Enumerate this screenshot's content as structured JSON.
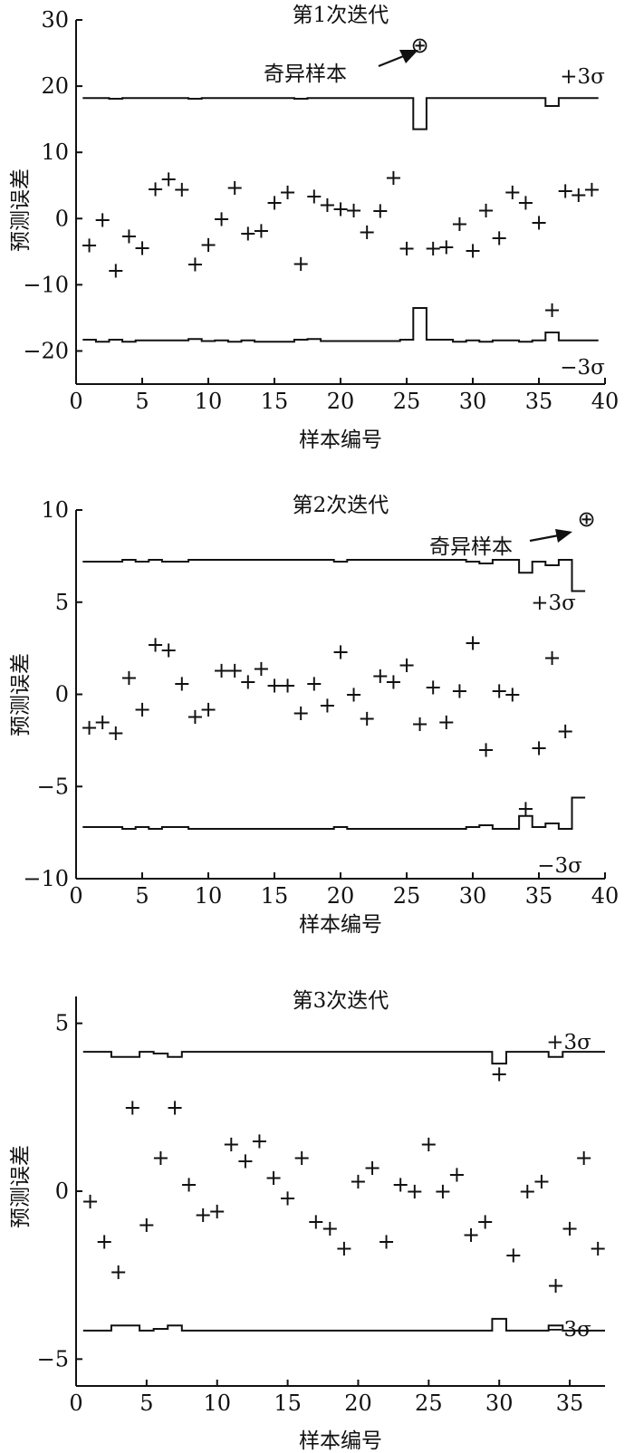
{
  "chart_data": [
    {
      "type": "scatter",
      "title": "第1次迭代",
      "xlabel": "样本编号",
      "ylabel": "预测误差",
      "xlim": [
        0,
        40
      ],
      "ylim": [
        -25,
        30
      ],
      "xticks": [
        0,
        5,
        10,
        15,
        20,
        25,
        30,
        35,
        40
      ],
      "xtick_labels": [
        "0",
        "5",
        "10",
        "15",
        "20",
        "25",
        "30",
        "35",
        "40"
      ],
      "yticks": [
        30,
        20,
        10,
        0,
        -10,
        -20
      ],
      "ytick_labels": [
        "30",
        "20",
        "10",
        "0",
        "−10",
        "−20"
      ],
      "grid": false,
      "x": [
        1,
        2,
        3,
        4,
        5,
        6,
        7,
        8,
        9,
        10,
        11,
        12,
        13,
        14,
        15,
        16,
        17,
        18,
        19,
        20,
        21,
        22,
        23,
        24,
        25,
        27,
        28,
        29,
        30,
        31,
        32,
        33,
        34,
        35,
        36,
        37,
        38,
        39
      ],
      "y": [
        -4,
        -0.2,
        -7.8,
        -2.6,
        -4.4,
        4.5,
        6,
        4.4,
        -6.9,
        -3.9,
        0,
        4.7,
        -2.2,
        -1.8,
        2.4,
        4,
        -6.8,
        3.4,
        2.1,
        1.5,
        1.3,
        -2,
        1.2,
        6.2,
        -4.5,
        -4.5,
        -4.3,
        -0.8,
        -4.8,
        1.3,
        -2.9,
        4,
        2.4,
        -0.6,
        -13.8,
        4.2,
        3.6,
        4.4
      ],
      "upper_limit": {
        "label": "+3σ",
        "x": [
          1,
          2,
          3,
          4,
          5,
          6,
          7,
          8,
          9,
          10,
          11,
          12,
          13,
          14,
          15,
          16,
          17,
          18,
          19,
          20,
          21,
          22,
          23,
          24,
          25,
          26,
          27,
          28,
          29,
          30,
          31,
          32,
          33,
          34,
          35,
          36,
          37,
          38,
          39
        ],
        "y": [
          18.2,
          18.2,
          18.1,
          18.2,
          18.2,
          18.2,
          18.2,
          18.2,
          18.1,
          18.2,
          18.2,
          18.2,
          18.2,
          18.2,
          18.2,
          18.2,
          18.1,
          18.2,
          18.2,
          18.2,
          18.2,
          18.2,
          18.2,
          18.2,
          18.2,
          13.5,
          18.2,
          18.2,
          18.2,
          18.2,
          18.2,
          18.2,
          18.2,
          18.2,
          18.2,
          17,
          18.2,
          18.2,
          18.2
        ]
      },
      "lower_limit": {
        "label": "−3σ",
        "x": [
          1,
          2,
          3,
          4,
          5,
          6,
          7,
          8,
          9,
          10,
          11,
          12,
          13,
          14,
          15,
          16,
          17,
          18,
          19,
          20,
          21,
          22,
          23,
          24,
          25,
          26,
          27,
          28,
          29,
          30,
          31,
          32,
          33,
          34,
          35,
          36,
          37,
          38,
          39
        ],
        "y": [
          -18.3,
          -18.6,
          -18.3,
          -18.6,
          -18.4,
          -18.4,
          -18.4,
          -18.4,
          -18.2,
          -18.5,
          -18.4,
          -18.6,
          -18.4,
          -18.6,
          -18.6,
          -18.6,
          -18.3,
          -18.2,
          -18.5,
          -18.5,
          -18.5,
          -18.5,
          -18.5,
          -18.5,
          -18.3,
          -13.5,
          -18.3,
          -18.3,
          -18.6,
          -18.4,
          -18.6,
          -18.4,
          -18.4,
          -18.6,
          -18.4,
          -17.2,
          -18.4,
          -18.4,
          -18.4
        ]
      },
      "singular_sample": {
        "label": "奇异样本",
        "marker": "⊕",
        "x": 26,
        "y": 26.2
      }
    },
    {
      "type": "scatter",
      "title": "第2次迭代",
      "xlabel": "样本编号",
      "ylabel": "预测误差",
      "xlim": [
        0,
        40
      ],
      "ylim": [
        -10,
        10
      ],
      "xticks": [
        0,
        5,
        10,
        15,
        20,
        25,
        30,
        35,
        40
      ],
      "xtick_labels": [
        "0",
        "5",
        "10",
        "15",
        "20",
        "25",
        "30",
        "35",
        "40"
      ],
      "yticks": [
        10,
        5,
        0,
        -5,
        -10
      ],
      "ytick_labels": [
        "10",
        "5",
        "0",
        "−5",
        "−10"
      ],
      "grid": false,
      "x": [
        1,
        2,
        3,
        4,
        5,
        6,
        7,
        8,
        9,
        10,
        11,
        12,
        13,
        14,
        15,
        16,
        17,
        18,
        19,
        20,
        21,
        22,
        23,
        24,
        25,
        26,
        27,
        28,
        29,
        30,
        31,
        32,
        33,
        34,
        35,
        36,
        37
      ],
      "y": [
        -1.8,
        -1.5,
        -2.1,
        0.9,
        -0.8,
        2.7,
        2.4,
        0.6,
        -1.2,
        -0.8,
        1.3,
        1.3,
        0.7,
        1.4,
        0.5,
        0.5,
        -1,
        0.6,
        -0.6,
        2.3,
        0,
        -1.3,
        1,
        0.7,
        1.6,
        -1.6,
        0.4,
        -1.5,
        0.2,
        2.8,
        -3,
        0.2,
        0,
        -6.2,
        -2.9,
        2,
        -2
      ],
      "upper_limit": {
        "label": "+3σ",
        "x": [
          1,
          2,
          3,
          4,
          5,
          6,
          7,
          8,
          9,
          10,
          11,
          12,
          13,
          14,
          15,
          16,
          17,
          18,
          19,
          20,
          21,
          22,
          23,
          24,
          25,
          26,
          27,
          28,
          29,
          30,
          31,
          32,
          33,
          34,
          35,
          36,
          37,
          38
        ],
        "y": [
          7.2,
          7.2,
          7.2,
          7.3,
          7.2,
          7.3,
          7.2,
          7.2,
          7.3,
          7.3,
          7.3,
          7.3,
          7.3,
          7.3,
          7.3,
          7.3,
          7.3,
          7.3,
          7.3,
          7.2,
          7.3,
          7.3,
          7.3,
          7.3,
          7.3,
          7.3,
          7.3,
          7.3,
          7.3,
          7.2,
          7.1,
          7.3,
          7.3,
          6.6,
          7.2,
          7,
          7.3,
          5.6
        ]
      },
      "lower_limit": {
        "label": "−3σ",
        "x": [
          1,
          2,
          3,
          4,
          5,
          6,
          7,
          8,
          9,
          10,
          11,
          12,
          13,
          14,
          15,
          16,
          17,
          18,
          19,
          20,
          21,
          22,
          23,
          24,
          25,
          26,
          27,
          28,
          29,
          30,
          31,
          32,
          33,
          34,
          35,
          36,
          37,
          38
        ],
        "y": [
          -7.2,
          -7.2,
          -7.2,
          -7.3,
          -7.2,
          -7.3,
          -7.2,
          -7.2,
          -7.3,
          -7.3,
          -7.3,
          -7.3,
          -7.3,
          -7.3,
          -7.3,
          -7.3,
          -7.3,
          -7.3,
          -7.3,
          -7.2,
          -7.3,
          -7.3,
          -7.3,
          -7.3,
          -7.3,
          -7.3,
          -7.3,
          -7.3,
          -7.3,
          -7.2,
          -7.1,
          -7.3,
          -7.3,
          -6.6,
          -7.2,
          -7,
          -7.3,
          -5.6
        ]
      },
      "singular_sample": {
        "label": "奇异样本",
        "marker": "⊕",
        "x": 38.6,
        "y": 9.5
      }
    },
    {
      "type": "scatter",
      "title": "第3次迭代",
      "xlabel": "样本编号",
      "ylabel": "预测误差",
      "xlim": [
        0,
        37.5
      ],
      "ylim": [
        -5.8,
        5.8
      ],
      "xticks": [
        0,
        5,
        10,
        15,
        20,
        25,
        30,
        35
      ],
      "xtick_labels": [
        "0",
        "5",
        "10",
        "15",
        "20",
        "25",
        "30",
        "35"
      ],
      "yticks": [
        5,
        0,
        -5
      ],
      "ytick_labels": [
        "5",
        "0",
        "−5"
      ],
      "grid": false,
      "x": [
        1,
        2,
        3,
        4,
        5,
        6,
        7,
        8,
        9,
        10,
        11,
        12,
        13,
        14,
        15,
        16,
        17,
        18,
        19,
        20,
        21,
        22,
        23,
        24,
        25,
        26,
        27,
        28,
        29,
        30,
        31,
        32,
        33,
        34,
        35,
        36,
        37
      ],
      "y": [
        -0.3,
        -1.5,
        -2.4,
        2.5,
        -1,
        1,
        2.5,
        0.2,
        -0.7,
        -0.6,
        1.4,
        0.9,
        1.5,
        0.4,
        -0.2,
        1,
        -0.9,
        -1.1,
        -1.7,
        0.3,
        0.7,
        -1.5,
        0.2,
        0,
        1.4,
        0,
        0.5,
        -1.3,
        -0.9,
        3.5,
        -1.9,
        0,
        0.3,
        -2.8,
        -1.1,
        1,
        -1.7
      ],
      "upper_limit": {
        "label": "+3σ",
        "x": [
          1,
          2,
          3,
          4,
          5,
          6,
          7,
          8,
          9,
          10,
          11,
          12,
          13,
          14,
          15,
          16,
          17,
          18,
          19,
          20,
          21,
          22,
          23,
          24,
          25,
          26,
          27,
          28,
          29,
          30,
          31,
          32,
          33,
          34,
          35,
          36,
          37
        ],
        "y": [
          4.15,
          4.15,
          4,
          4,
          4.15,
          4.1,
          4,
          4.15,
          4.15,
          4.15,
          4.15,
          4.15,
          4.15,
          4.15,
          4.15,
          4.15,
          4.15,
          4.15,
          4.15,
          4.15,
          4.15,
          4.15,
          4.15,
          4.15,
          4.15,
          4.15,
          4.15,
          4.15,
          4.15,
          3.8,
          4.15,
          4.15,
          4.15,
          4,
          4.15,
          4.15,
          4.15
        ]
      },
      "lower_limit": {
        "label": "−3σ",
        "x": [
          1,
          2,
          3,
          4,
          5,
          6,
          7,
          8,
          9,
          10,
          11,
          12,
          13,
          14,
          15,
          16,
          17,
          18,
          19,
          20,
          21,
          22,
          23,
          24,
          25,
          26,
          27,
          28,
          29,
          30,
          31,
          32,
          33,
          34,
          35,
          36,
          37
        ],
        "y": [
          -4.15,
          -4.15,
          -4,
          -4,
          -4.15,
          -4.1,
          -4,
          -4.15,
          -4.15,
          -4.15,
          -4.15,
          -4.15,
          -4.15,
          -4.15,
          -4.15,
          -4.15,
          -4.15,
          -4.15,
          -4.15,
          -4.15,
          -4.15,
          -4.15,
          -4.15,
          -4.15,
          -4.15,
          -4.15,
          -4.15,
          -4.15,
          -4.15,
          -3.8,
          -4.15,
          -4.15,
          -4.15,
          -4,
          -4.15,
          -4.15,
          -4.15
        ]
      }
    }
  ]
}
